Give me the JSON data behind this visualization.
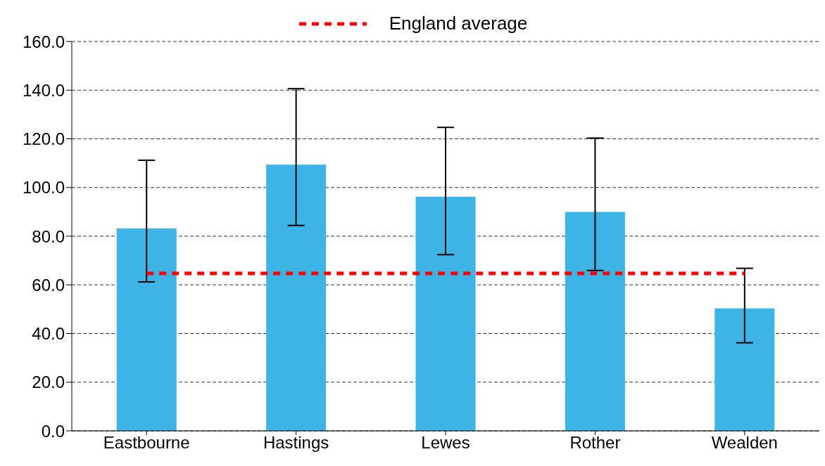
{
  "chart_data": {
    "type": "bar",
    "categories": [
      "Eastbourne",
      "Hastings",
      "Lewes",
      "Rother",
      "Wealden"
    ],
    "series": [
      {
        "color": "#3db4e5",
        "values": [
          83.2,
          109.4,
          96.2,
          90.0,
          50.3
        ],
        "errors": [
          [
            61.2,
            111.2
          ],
          [
            84.4,
            140.6
          ],
          [
            72.4,
            124.7
          ],
          [
            65.9,
            120.3
          ],
          [
            36.2,
            66.8
          ]
        ]
      },
      {
        "type": "line",
        "name": "England average",
        "color": "#ff0000",
        "values": [
          64.7,
          64.7,
          64.7,
          64.7,
          64.7
        ],
        "line_style": "dashed",
        "marker": "none"
      }
    ],
    "ylim": [
      0,
      160
    ],
    "yticks": [
      {
        "value": 0,
        "label": "0.0"
      },
      {
        "value": 20,
        "label": "20.0"
      },
      {
        "value": 40,
        "label": "40.0"
      },
      {
        "value": 60,
        "label": "60.0"
      },
      {
        "value": 80,
        "label": "80.0"
      },
      {
        "value": 100,
        "label": "100.0"
      },
      {
        "value": 120,
        "label": "120.0"
      },
      {
        "value": 140,
        "label": "140.0"
      },
      {
        "value": 160,
        "label": "160.0"
      }
    ],
    "grid": "y",
    "legend": "top"
  }
}
